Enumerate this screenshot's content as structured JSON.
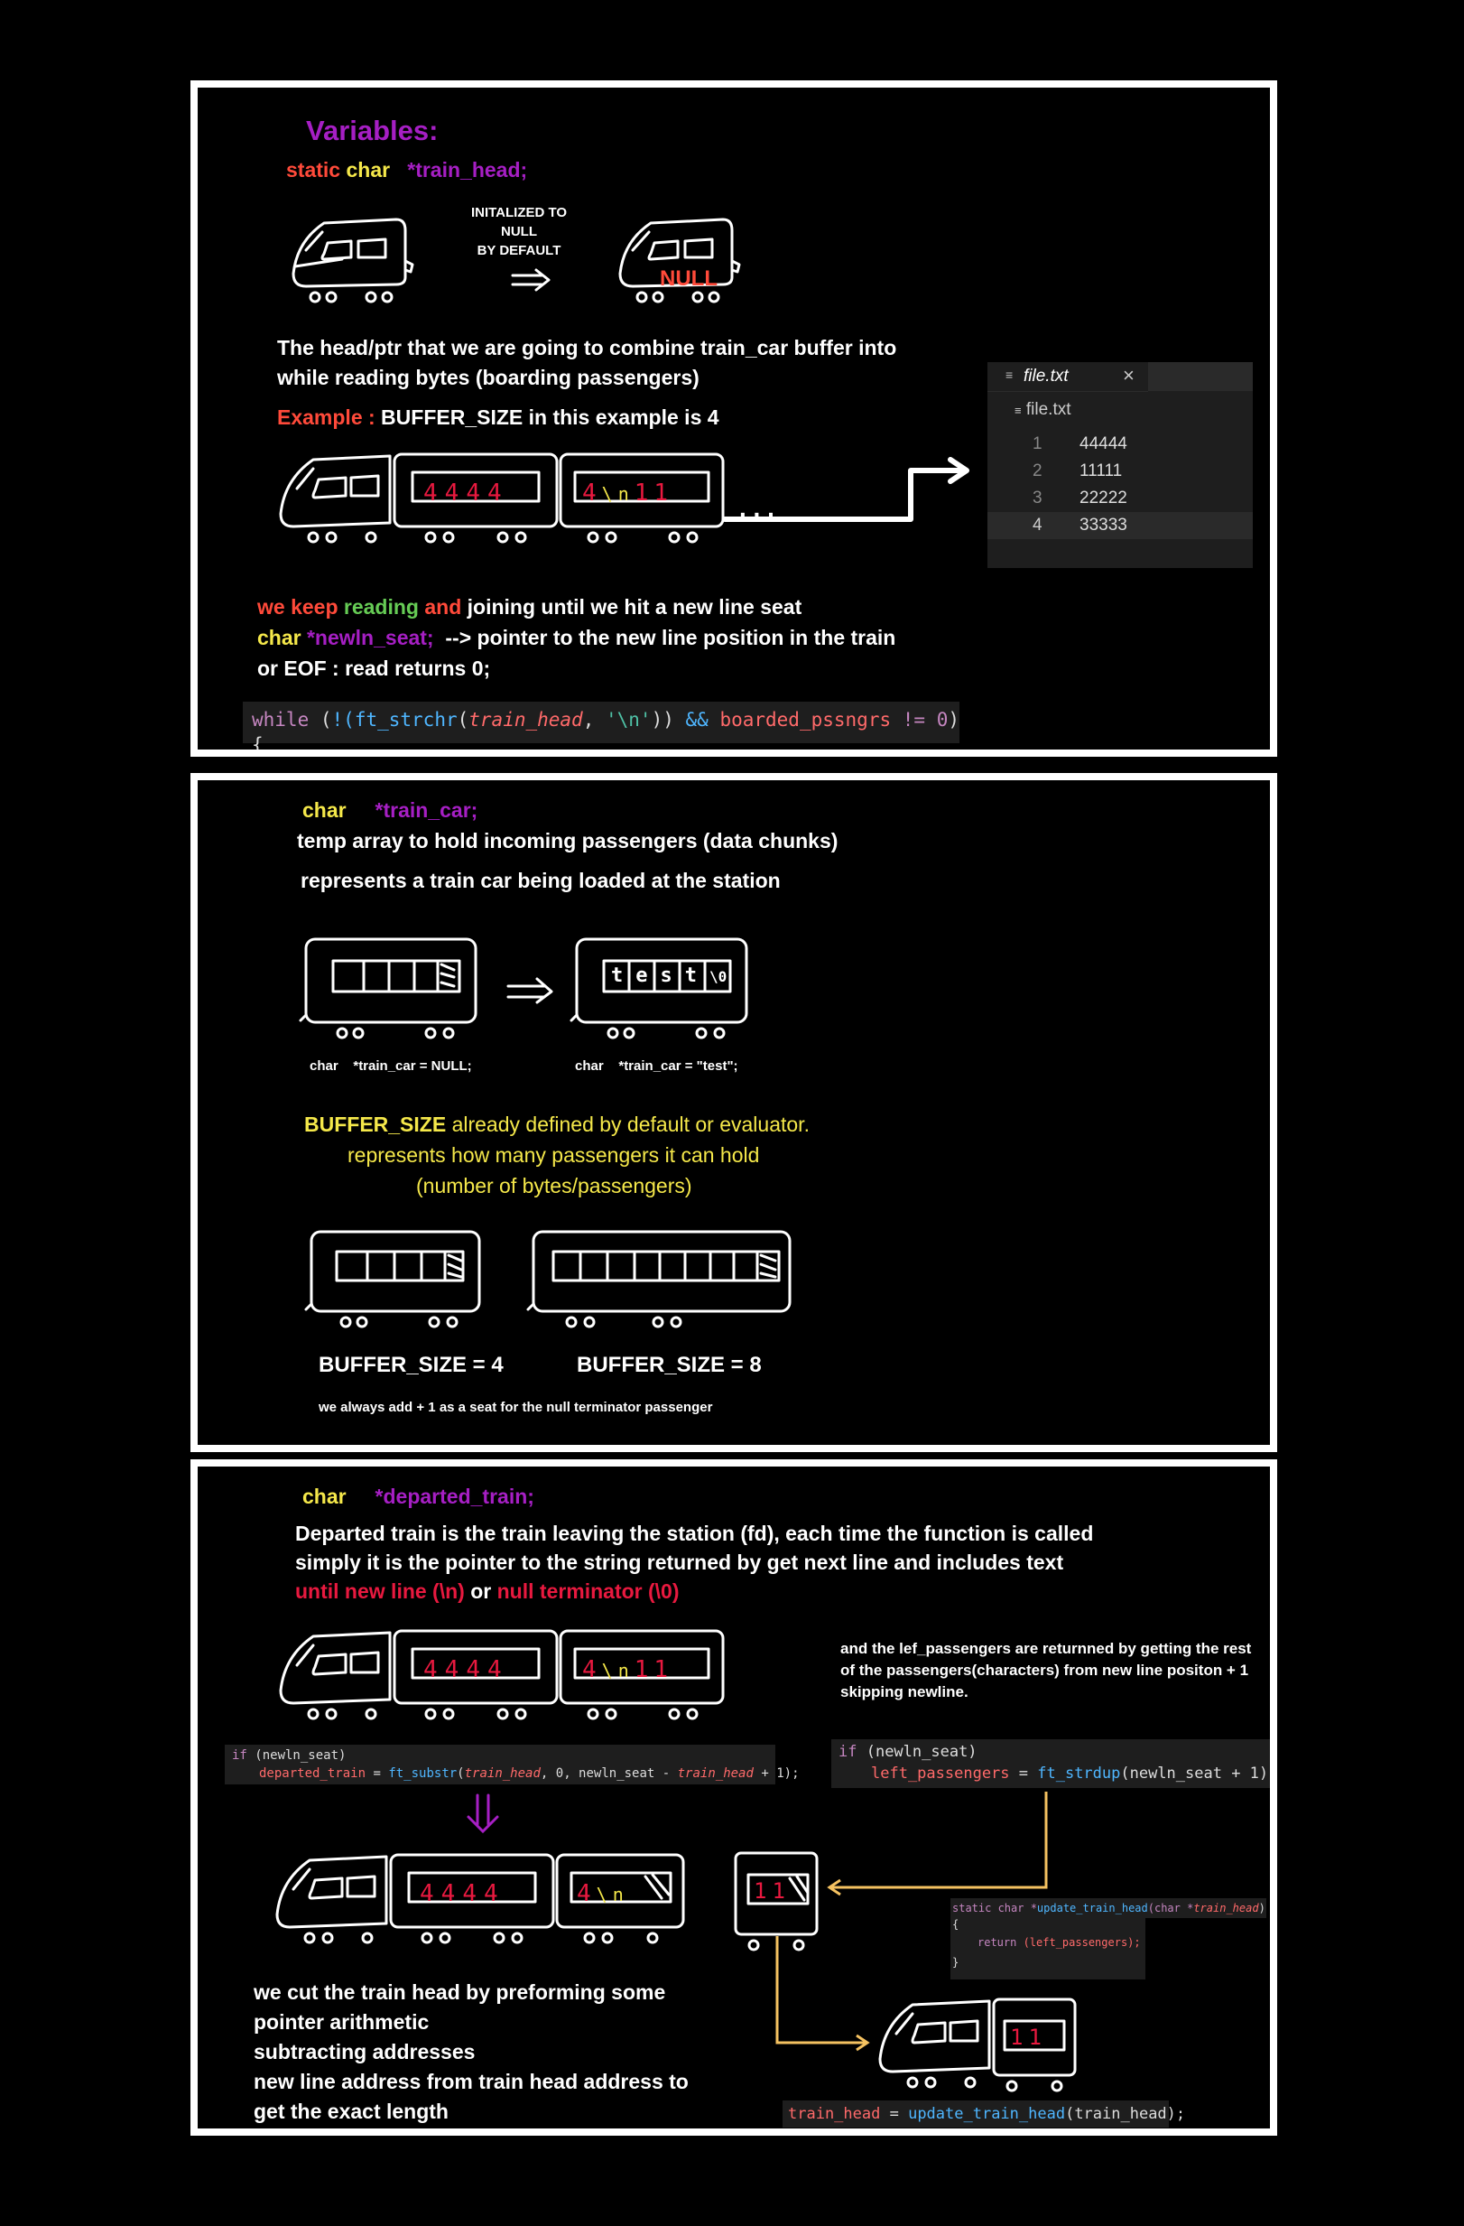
{
  "colors": {
    "purple": "#a61fc4",
    "red": "#ff4a3a",
    "yellow": "#f5e84a",
    "green": "#66cc55",
    "crimson": "#e8193f",
    "orange": "#f5c261",
    "code_bg": "#1e1e1e",
    "code_kw": "#c586c0",
    "code_fn": "#4fb6ff",
    "code_str": "#4fc1a6",
    "code_param": "#ff6a6a"
  },
  "panel1": {
    "title": "Variables:",
    "decl_static": "static",
    "decl_char": "char",
    "decl_var": "*train_head;",
    "init_line1": "INITALIZED TO",
    "init_line2": "NULL",
    "init_line3": "BY DEFAULT",
    "null_label": "NULL",
    "desc_line1": "The head/ptr that we are going to combine train_car buffer into",
    "desc_line2": "while reading bytes (boarding passengers)",
    "example_label": "Example :",
    "example_text": "BUFFER_SIZE in this example is 4",
    "car1_chars": [
      "4",
      "4",
      "4",
      "4"
    ],
    "car2_chars": [
      "4",
      "\\n",
      "1",
      "1"
    ],
    "trail_dots": ". . .",
    "file_tab": "file.txt",
    "file_close": "×",
    "file_crumb": "file.txt",
    "file_lines": [
      {
        "num": "1",
        "text": "44444"
      },
      {
        "num": "2",
        "text": "11111"
      },
      {
        "num": "3",
        "text": "22222"
      },
      {
        "num": "4",
        "text": "33333"
      }
    ],
    "keep_we_keep": "we keep",
    "keep_reading": "reading",
    "keep_and": "and",
    "keep_rest": "joining until we hit a new line seat",
    "newln_char": "char",
    "newln_var": "*newln_seat;",
    "newln_desc": "--> pointer to the new line position in the train",
    "eof_line": "or EOF : read returns 0;",
    "code_while": "while",
    "code_open": " (",
    "code_not": "!(",
    "code_fn": "ft_strchr",
    "code_lp": "(",
    "code_param": "train_head",
    "code_comma": ", ",
    "code_str": "'\\n'",
    "code_rp": "))",
    "code_and": " && ",
    "code_var": "boarded_pssngrs",
    "code_ne": " != ",
    "code_num": "0",
    "code_end": ")",
    "code_brace": "{"
  },
  "panel2": {
    "decl_char": "char",
    "decl_var": "*train_car;",
    "desc_line1": "temp array to hold incoming passengers (data chunks)",
    "desc_line2": "represents a train car being loaded at the station",
    "test_chars": [
      "t",
      "e",
      "s",
      "t",
      "\\0"
    ],
    "label_null": "char    *train_car = NULL;",
    "label_test": "char    *train_car = \"test\";",
    "bs_name": "BUFFER_SIZE",
    "bs_desc1": "already defined by default or evaluator.",
    "bs_desc2": "represents how many passengers it can hold",
    "bs_desc3": "(number of bytes/passengers)",
    "bs4_label": "BUFFER_SIZE = 4",
    "bs8_label": "BUFFER_SIZE = 8",
    "null_note": "we always add + 1 as a seat for the null terminator passenger"
  },
  "panel3": {
    "decl_char": "char",
    "decl_var": "*departed_train;",
    "desc_line1": "Departed train is the train leaving the station (fd), each time the function is called",
    "desc_line2": "simply it is the pointer to the string returned by get next line and includes text",
    "until_nl": "until new line (\\n)",
    "or_word": "or",
    "null_term": "null terminator (\\0)",
    "right_desc1": "and the lef_passengers are returnned by getting the rest",
    "right_desc2": "of the passengers(characters) from new line positon + 1",
    "right_desc3": "skipping newline.",
    "car1_chars": [
      "4",
      "4",
      "4",
      "4"
    ],
    "car2_chars": [
      "4",
      "\\n",
      "1",
      "1"
    ],
    "cut_car2_chars": [
      "4",
      "\\n"
    ],
    "left_car_chars": [
      "1",
      "1"
    ],
    "code1_if": "if",
    "code1_cond": " (newln_seat)",
    "code1_var": "departed_train",
    "code1_eq": " = ",
    "code1_fn": "ft_substr",
    "code1_lp": "(",
    "code1_p1": "train_head",
    "code1_mid": ", 0, newln_seat - ",
    "code1_p2": "train_head",
    "code1_end": " + 1);",
    "code2_if": "if",
    "code2_cond": " (newln_seat)",
    "code2_var": "left_passengers",
    "code2_eq": " = ",
    "code2_fn": "ft_strdup",
    "code2_args": "(newln_seat + 1);",
    "code3_static": "static char *",
    "code3_fn": "update_train_head",
    "code3_lp": "(char *",
    "code3_param": "train_head",
    "code3_rp": ")",
    "code3_open": "{",
    "code3_return": "return",
    "code3_ret_val": " (left_passengers);",
    "code3_close": "}",
    "code4_var": "train_head",
    "code4_eq": " = ",
    "code4_fn": "update_train_head",
    "code4_args": "(train_head);",
    "cut_line1": "we cut the train head by preforming some",
    "cut_line2": "pointer arithmetic",
    "cut_line3": "subtracting addresses",
    "cut_line4": "new line address from train head address to",
    "cut_line5": "get the exact length"
  }
}
